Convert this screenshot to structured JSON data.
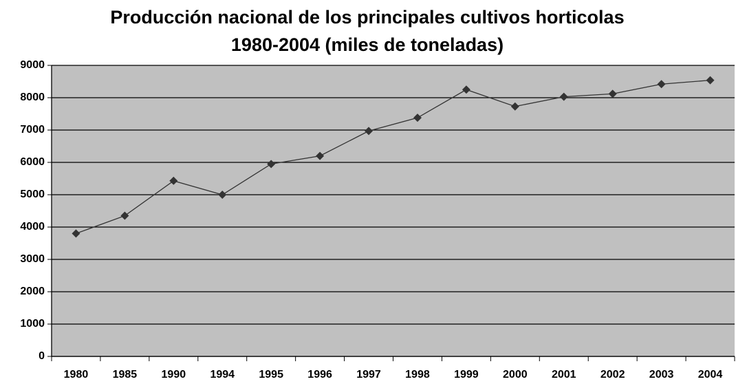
{
  "chart_data": {
    "type": "line",
    "title": [
      "Producción nacional de los principales cultivos horticolas",
      "1980-2004 (miles de toneladas)"
    ],
    "categories": [
      "1980",
      "1985",
      "1990",
      "1994",
      "1995",
      "1996",
      "1997",
      "1998",
      "1999",
      "2000",
      "2001",
      "2002",
      "2003",
      "2004"
    ],
    "series": [
      {
        "color": "#333333",
        "values": [
          3800,
          4350,
          5430,
          5000,
          5950,
          6200,
          6970,
          7380,
          8250,
          7730,
          8030,
          8120,
          8420,
          8540
        ]
      }
    ],
    "ylim": [
      0,
      9000
    ],
    "yticks": [
      0,
      1000,
      2000,
      3000,
      4000,
      5000,
      6000,
      7000,
      8000,
      9000
    ],
    "grid": true,
    "plot_background": "#c0c0c0"
  }
}
